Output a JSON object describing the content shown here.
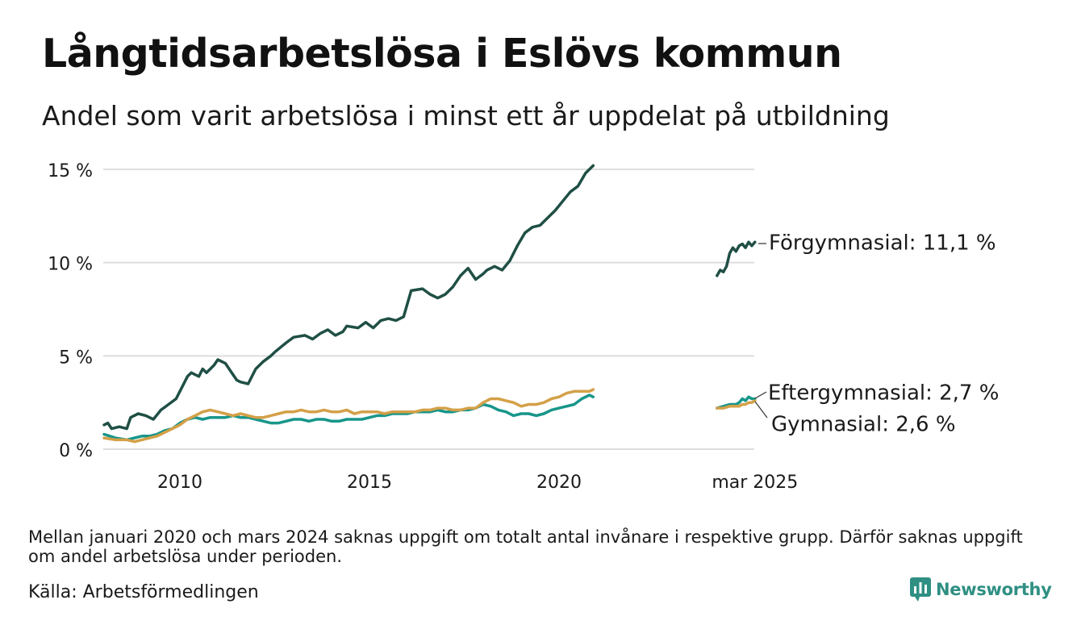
{
  "title": "Långtidsarbetslösa i Eslövs kommun",
  "subtitle": "Andel som varit arbetslösa i minst ett år uppdelat på utbildning",
  "note": "Mellan januari 2020 och mars 2024 saknas uppgift om totalt antal invånare i respektive grupp. Därför saknas uppgift om andel arbetslösa under perioden.",
  "source": "Källa: Arbetsförmedlingen",
  "brand": {
    "name": "Newsworthy",
    "color": "#2f8f83"
  },
  "colors": {
    "forgymnasial": "#1f4f45",
    "eftergymnasial": "#17968a",
    "gymnasial": "#d4a048",
    "grid": "#dddddd"
  },
  "chart_data": {
    "type": "line",
    "y_ticks": [
      {
        "value": 0,
        "label": "0 %"
      },
      {
        "value": 5,
        "label": "5 %"
      },
      {
        "value": 10,
        "label": "10 %"
      },
      {
        "value": 15,
        "label": "15 %"
      }
    ],
    "x_ticks": [
      {
        "value": 2010,
        "label": "2010"
      },
      {
        "value": 2015,
        "label": "2015"
      },
      {
        "value": 2020,
        "label": "2020"
      },
      {
        "value": "2025-03",
        "label": "mar 2025"
      }
    ],
    "ylim": [
      0,
      15
    ],
    "grid": true,
    "series": [
      {
        "name": "Förgymnasial",
        "label": "Förgymnasial: 11,1 %",
        "color": "#1f4f45",
        "segments": [
          {
            "x": [
              2008.0,
              2008.1,
              2008.2,
              2008.4,
              2008.6,
              2008.7,
              2008.9,
              2009.1,
              2009.3,
              2009.5,
              2009.7,
              2009.9,
              2010.0,
              2010.2,
              2010.3,
              2010.5,
              2010.6,
              2010.7,
              2010.9,
              2011.0,
              2011.2,
              2011.4,
              2011.5,
              2011.6,
              2011.8,
              2012.0,
              2012.2,
              2012.4,
              2012.5,
              2012.8,
              2013.0,
              2013.3,
              2013.5,
              2013.7,
              2013.9,
              2014.1,
              2014.3,
              2014.4,
              2014.7,
              2014.9,
              2015.1,
              2015.3,
              2015.5,
              2015.7,
              2015.9,
              2016.1,
              2016.4,
              2016.6,
              2016.8,
              2017.0,
              2017.2,
              2017.4,
              2017.6,
              2017.8,
              2018.0,
              2018.1,
              2018.3,
              2018.5,
              2018.7,
              2018.9,
              2019.1,
              2019.3,
              2019.5,
              2019.7,
              2019.9,
              2020.1,
              2020.3,
              2020.5,
              2020.7,
              2020.9
            ],
            "y": [
              1.3,
              1.4,
              1.1,
              1.2,
              1.1,
              1.7,
              1.9,
              1.8,
              1.6,
              2.1,
              2.4,
              2.7,
              3.1,
              3.9,
              4.1,
              3.9,
              4.3,
              4.1,
              4.5,
              4.8,
              4.6,
              4.0,
              3.7,
              3.6,
              3.5,
              4.3,
              4.7,
              5.0,
              5.2,
              5.7,
              6.0,
              6.1,
              5.9,
              6.2,
              6.4,
              6.1,
              6.3,
              6.6,
              6.5,
              6.8,
              6.5,
              6.9,
              7.0,
              6.9,
              7.1,
              8.5,
              8.6,
              8.3,
              8.1,
              8.3,
              8.7,
              9.3,
              9.7,
              9.1,
              9.4,
              9.6,
              9.8,
              9.6,
              10.1,
              10.9,
              11.6,
              11.9,
              12.0,
              12.4,
              12.8,
              13.3,
              13.8,
              14.1,
              14.8,
              15.2
            ]
          },
          {
            "x": [
              "2024-03",
              "2024-04",
              "2024-05",
              "2024-06",
              "2024-07",
              "2024-08",
              "2024-09",
              "2024-10",
              "2024-11",
              "2024-12",
              "2025-01",
              "2025-02",
              "2025-03"
            ],
            "y": [
              9.3,
              9.6,
              9.5,
              9.8,
              10.5,
              10.8,
              10.6,
              10.9,
              11.0,
              10.8,
              11.1,
              10.9,
              11.1
            ]
          }
        ]
      },
      {
        "name": "Eftergymnasial",
        "label": "Eftergymnasial:  2,7 %",
        "color": "#17968a",
        "segments": [
          {
            "x": [
              2008.0,
              2008.3,
              2008.6,
              2008.8,
              2009.0,
              2009.2,
              2009.4,
              2009.6,
              2009.8,
              2010.0,
              2010.2,
              2010.4,
              2010.6,
              2010.8,
              2011.0,
              2011.2,
              2011.4,
              2011.6,
              2011.8,
              2012.0,
              2012.2,
              2012.4,
              2012.6,
              2012.8,
              2013.0,
              2013.2,
              2013.4,
              2013.6,
              2013.8,
              2014.0,
              2014.2,
              2014.4,
              2014.6,
              2014.8,
              2015.0,
              2015.2,
              2015.4,
              2015.6,
              2015.8,
              2016.0,
              2016.2,
              2016.4,
              2016.6,
              2016.8,
              2017.0,
              2017.2,
              2017.4,
              2017.6,
              2017.8,
              2018.0,
              2018.2,
              2018.4,
              2018.6,
              2018.8,
              2019.0,
              2019.2,
              2019.4,
              2019.6,
              2019.8,
              2020.0,
              2020.2,
              2020.4,
              2020.6,
              2020.8,
              2020.9
            ],
            "y": [
              0.8,
              0.6,
              0.5,
              0.6,
              0.7,
              0.7,
              0.8,
              1.0,
              1.1,
              1.4,
              1.6,
              1.7,
              1.6,
              1.7,
              1.7,
              1.7,
              1.8,
              1.7,
              1.7,
              1.6,
              1.5,
              1.4,
              1.4,
              1.5,
              1.6,
              1.6,
              1.5,
              1.6,
              1.6,
              1.5,
              1.5,
              1.6,
              1.6,
              1.6,
              1.7,
              1.8,
              1.8,
              1.9,
              1.9,
              1.9,
              2.0,
              2.0,
              2.0,
              2.1,
              2.0,
              2.0,
              2.1,
              2.1,
              2.2,
              2.4,
              2.3,
              2.1,
              2.0,
              1.8,
              1.9,
              1.9,
              1.8,
              1.9,
              2.1,
              2.2,
              2.3,
              2.4,
              2.7,
              2.9,
              2.8
            ]
          },
          {
            "x": [
              "2024-03",
              "2024-05",
              "2024-07",
              "2024-09",
              "2024-10",
              "2024-11",
              "2024-12",
              "2025-01",
              "2025-02",
              "2025-03"
            ],
            "y": [
              2.2,
              2.3,
              2.4,
              2.4,
              2.5,
              2.7,
              2.6,
              2.8,
              2.7,
              2.7
            ]
          }
        ]
      },
      {
        "name": "Gymnasial",
        "label": "Gymnasial:  2,6 %",
        "color": "#d4a048",
        "segments": [
          {
            "x": [
              2008.0,
              2008.3,
              2008.6,
              2008.8,
              2009.0,
              2009.2,
              2009.4,
              2009.6,
              2009.8,
              2010.0,
              2010.2,
              2010.4,
              2010.6,
              2010.8,
              2011.0,
              2011.2,
              2011.4,
              2011.6,
              2011.8,
              2012.0,
              2012.2,
              2012.4,
              2012.6,
              2012.8,
              2013.0,
              2013.2,
              2013.4,
              2013.6,
              2013.8,
              2014.0,
              2014.2,
              2014.4,
              2014.6,
              2014.8,
              2015.0,
              2015.2,
              2015.4,
              2015.6,
              2015.8,
              2016.0,
              2016.2,
              2016.4,
              2016.6,
              2016.8,
              2017.0,
              2017.2,
              2017.4,
              2017.6,
              2017.8,
              2018.0,
              2018.2,
              2018.4,
              2018.6,
              2018.8,
              2019.0,
              2019.2,
              2019.4,
              2019.6,
              2019.8,
              2020.0,
              2020.2,
              2020.4,
              2020.6,
              2020.8,
              2020.9
            ],
            "y": [
              0.6,
              0.5,
              0.5,
              0.4,
              0.5,
              0.6,
              0.7,
              0.9,
              1.1,
              1.3,
              1.6,
              1.8,
              2.0,
              2.1,
              2.0,
              1.9,
              1.8,
              1.9,
              1.8,
              1.7,
              1.7,
              1.8,
              1.9,
              2.0,
              2.0,
              2.1,
              2.0,
              2.0,
              2.1,
              2.0,
              2.0,
              2.1,
              1.9,
              2.0,
              2.0,
              2.0,
              1.9,
              2.0,
              2.0,
              2.0,
              2.0,
              2.1,
              2.1,
              2.2,
              2.2,
              2.1,
              2.1,
              2.2,
              2.2,
              2.5,
              2.7,
              2.7,
              2.6,
              2.5,
              2.3,
              2.4,
              2.4,
              2.5,
              2.7,
              2.8,
              3.0,
              3.1,
              3.1,
              3.1,
              3.2
            ]
          },
          {
            "x": [
              "2024-03",
              "2024-05",
              "2024-07",
              "2024-09",
              "2024-10",
              "2024-11",
              "2024-12",
              "2025-01",
              "2025-02",
              "2025-03"
            ],
            "y": [
              2.2,
              2.2,
              2.3,
              2.3,
              2.3,
              2.4,
              2.4,
              2.5,
              2.5,
              2.6
            ]
          }
        ]
      }
    ]
  }
}
